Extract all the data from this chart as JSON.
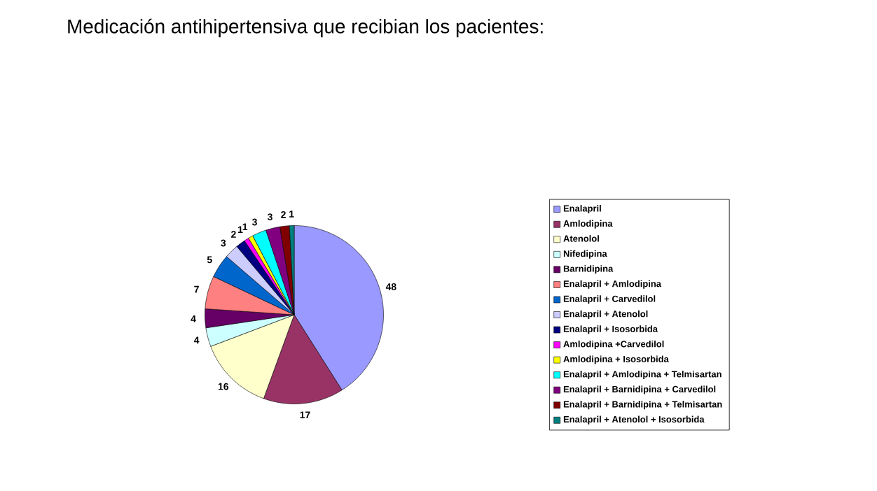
{
  "chart_data": {
    "type": "pie",
    "title": "Medicación antihipertensiva que recibian los pacientes:",
    "categories": [
      "Enalapril",
      "Amlodipina",
      "Atenolol",
      "Nifedipina",
      "Barnidipina",
      "Enalapril + Amlodipina",
      "Enalapril + Carvedilol",
      "Enalapril + Atenolol",
      "Enalapril + Isosorbida",
      "Amlodipina +Carvedilol",
      "Amlodipina + Isosorbida",
      "Enalapril + Amlodipina + Telmisartan",
      "Enalapril + Barnidipina + Carvedilol",
      "Enalapril + Barnidipina + Telmisartan",
      "Enalapril + Atenolol + Isosorbida"
    ],
    "values": [
      48,
      17,
      16,
      4,
      4,
      7,
      5,
      3,
      2,
      1,
      1,
      3,
      3,
      2,
      1
    ],
    "colors": [
      "#9999ff",
      "#993366",
      "#ffffcc",
      "#ccffff",
      "#660066",
      "#ff8080",
      "#0066cc",
      "#ccccff",
      "#000080",
      "#ff00ff",
      "#ffff00",
      "#00ffff",
      "#800080",
      "#800000",
      "#008080"
    ],
    "data_labels": true,
    "legend": "right"
  }
}
